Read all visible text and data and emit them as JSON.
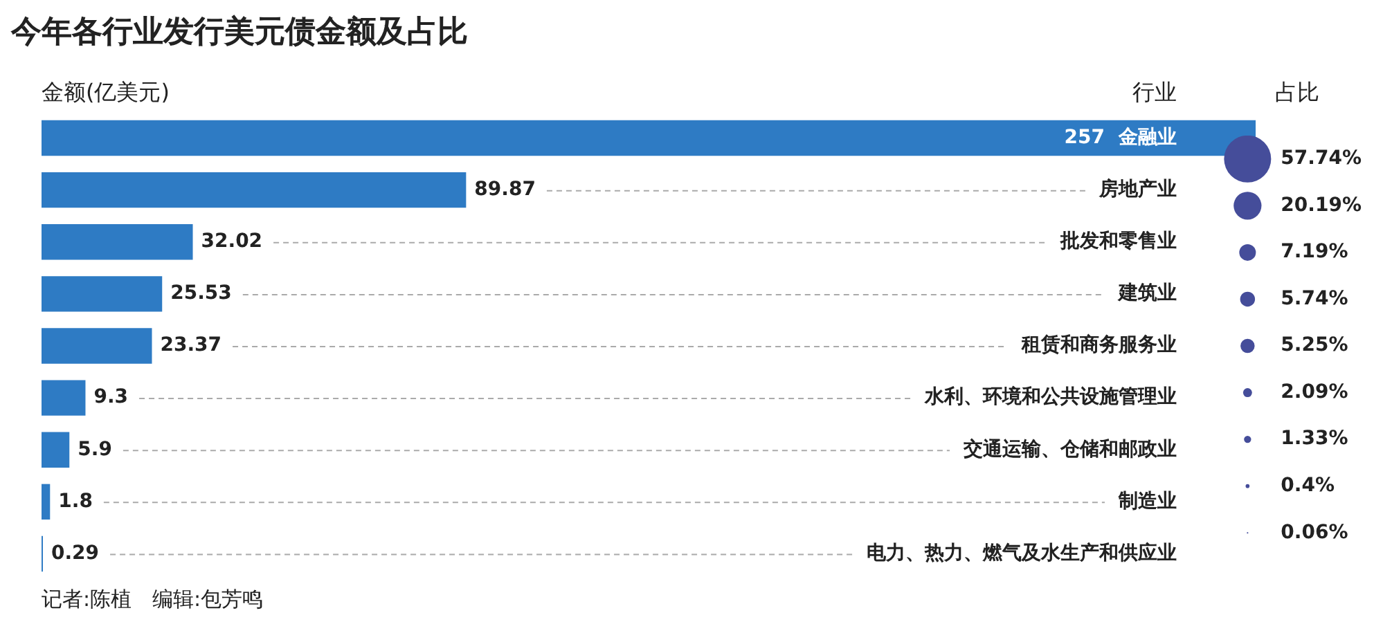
{
  "chart_data": [
    {
      "type": "bar",
      "orientation": "horizontal",
      "title": "今年各行业发行美元债金额及占比",
      "xlabel": "金额(亿美元)",
      "ylabel": "行业",
      "categories": [
        "金融业",
        "房地产业",
        "批发和零售业",
        "建筑业",
        "租赁和商务服务业",
        "水利、环境和公共设施管理业",
        "交通运输、仓储和邮政业",
        "制造业",
        "电力、热力、燃气及水生产和供应业"
      ],
      "values": [
        257,
        89.87,
        32.02,
        25.53,
        23.37,
        9.3,
        5.9,
        1.8,
        0.29
      ],
      "color": "#2e7bc4",
      "data_labels": true,
      "tick_labels": "y",
      "annotations": [
        "记者:陈植　编辑:包芳鸣"
      ]
    },
    {
      "type": "other",
      "title": "占比",
      "categories": [
        null,
        null,
        null,
        null,
        null,
        null,
        null,
        null,
        null
      ],
      "values": [
        57.74,
        20.19,
        7.19,
        5.74,
        5.25,
        2.09,
        1.33,
        0.4,
        0.06
      ],
      "value_labels": [
        "57.74%",
        "20.19%",
        "7.19%",
        "5.74%",
        "5.25%",
        "2.09%",
        "1.33%",
        "0.4%",
        "0.06%"
      ],
      "color": "#454d9a"
    }
  ]
}
